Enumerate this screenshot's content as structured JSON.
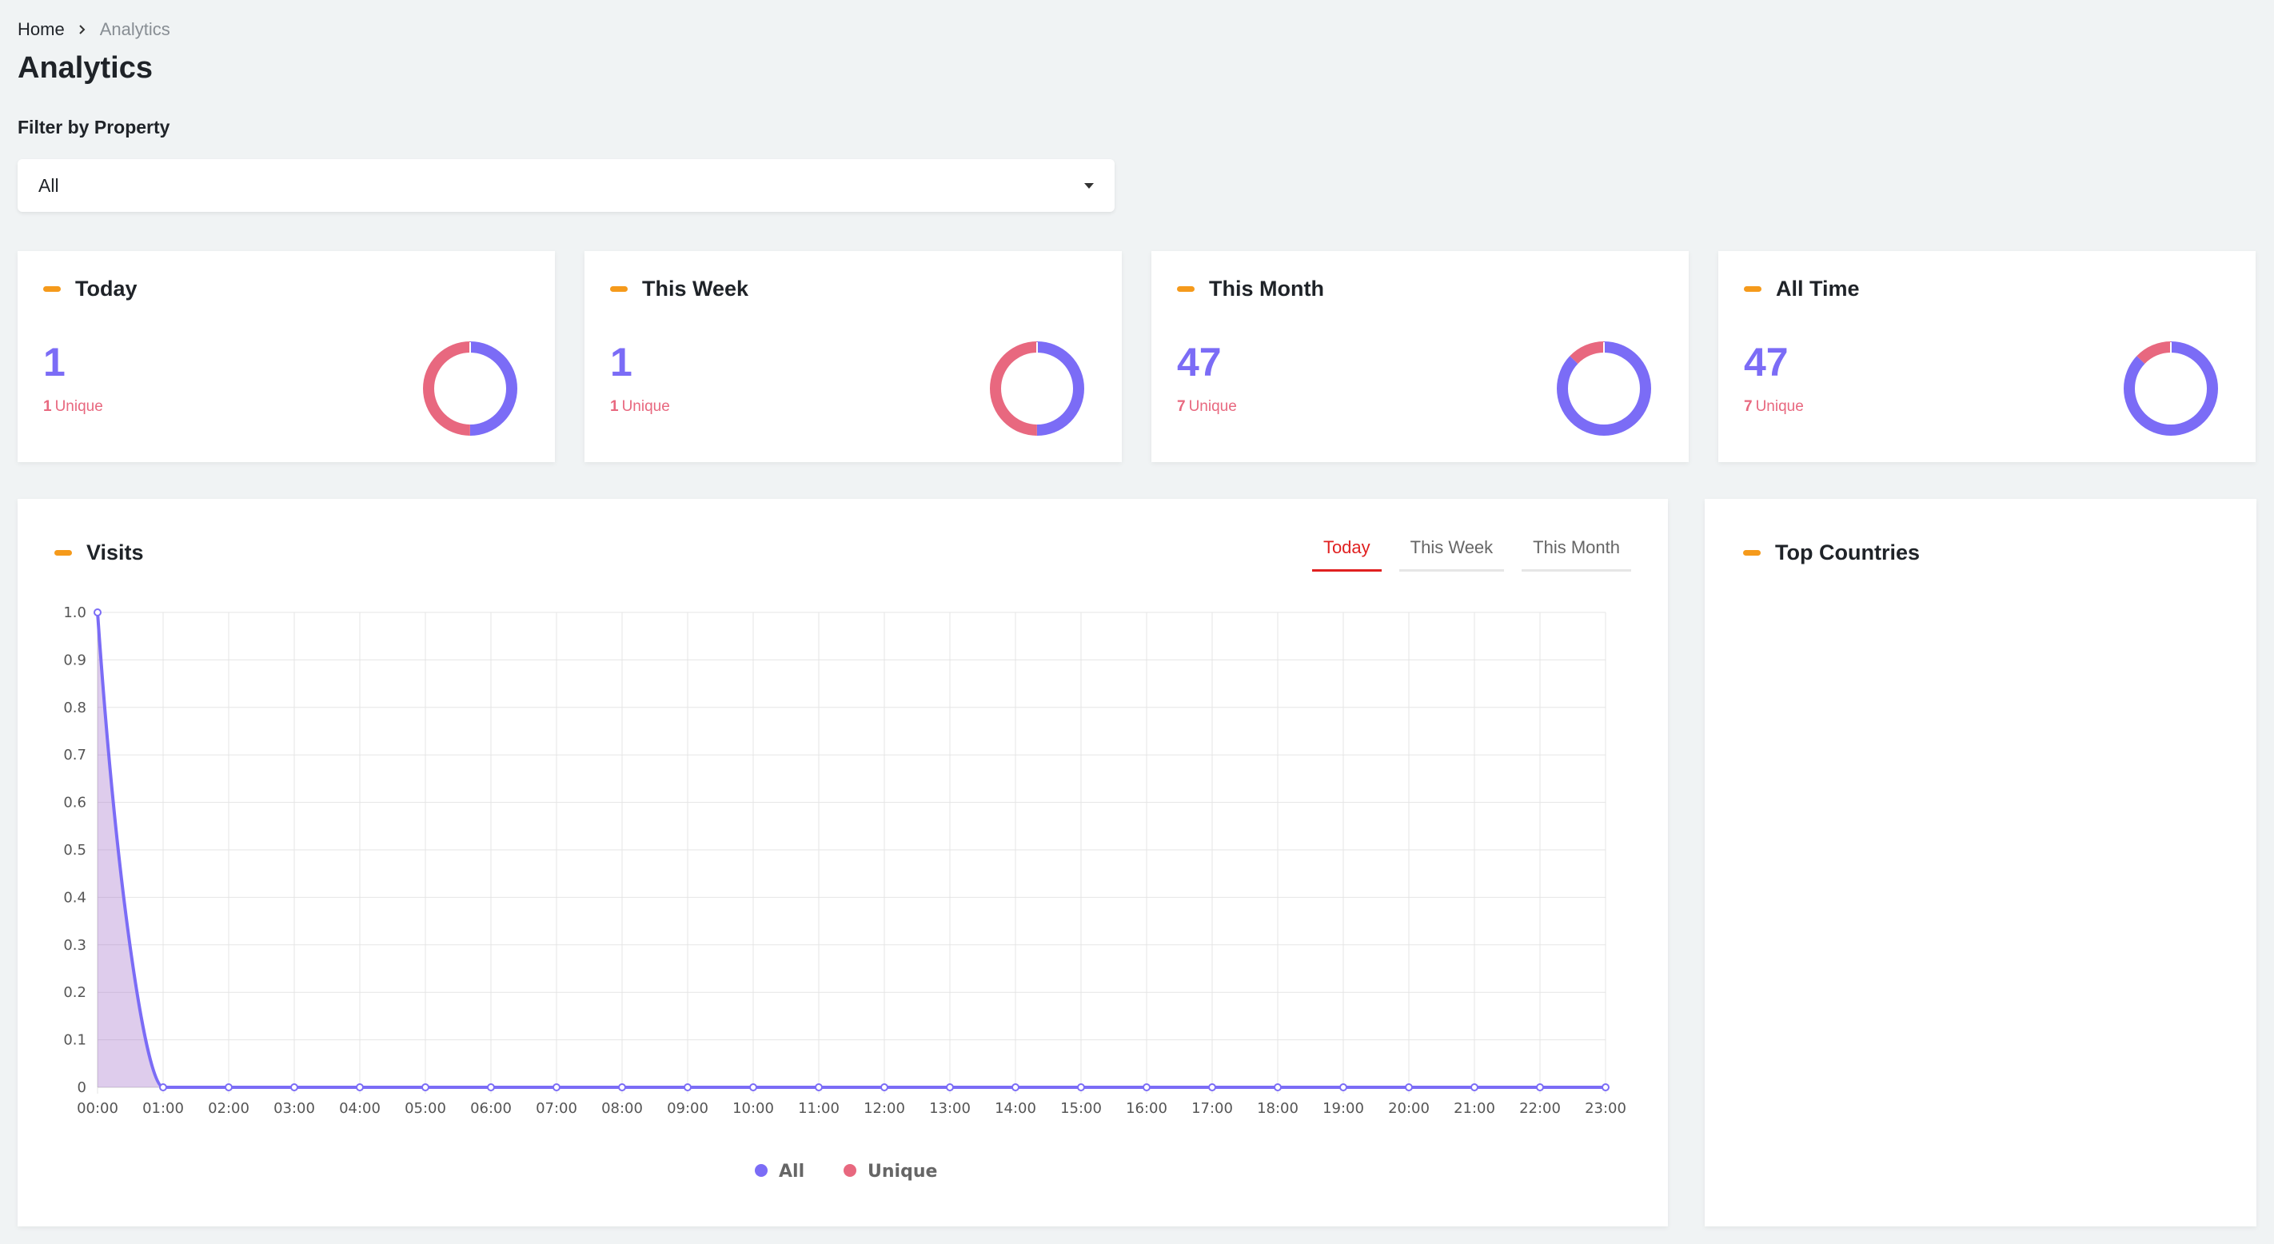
{
  "breadcrumb": {
    "home": "Home",
    "current": "Analytics"
  },
  "page_title": "Analytics",
  "filter": {
    "label": "Filter by Property",
    "selected": "All"
  },
  "stats": [
    {
      "title": "Today",
      "value": "1",
      "unique": "1",
      "unique_label": "Unique",
      "all": 1,
      "unique_count": 1
    },
    {
      "title": "This Week",
      "value": "1",
      "unique": "1",
      "unique_label": "Unique",
      "all": 1,
      "unique_count": 1
    },
    {
      "title": "This Month",
      "value": "47",
      "unique": "7",
      "unique_label": "Unique",
      "all": 47,
      "unique_count": 7
    },
    {
      "title": "All Time",
      "value": "47",
      "unique": "7",
      "unique_label": "Unique",
      "all": 47,
      "unique_count": 7
    }
  ],
  "visits": {
    "title": "Visits",
    "tabs": [
      "Today",
      "This Week",
      "This Month"
    ],
    "active_tab": "Today"
  },
  "top_countries": {
    "title": "Top Countries"
  },
  "colors": {
    "accent": "#f59a1b",
    "all": "#7b6cf6",
    "unique": "#e8687f",
    "tab_active": "#e02020"
  },
  "chart_data": {
    "type": "area",
    "x": [
      "00:00",
      "01:00",
      "02:00",
      "03:00",
      "04:00",
      "05:00",
      "06:00",
      "07:00",
      "08:00",
      "09:00",
      "10:00",
      "11:00",
      "12:00",
      "13:00",
      "14:00",
      "15:00",
      "16:00",
      "17:00",
      "18:00",
      "19:00",
      "20:00",
      "21:00",
      "22:00",
      "23:00"
    ],
    "series": [
      {
        "name": "All",
        "values": [
          1,
          0,
          0,
          0,
          0,
          0,
          0,
          0,
          0,
          0,
          0,
          0,
          0,
          0,
          0,
          0,
          0,
          0,
          0,
          0,
          0,
          0,
          0,
          0
        ]
      },
      {
        "name": "Unique",
        "values": [
          1,
          0,
          0,
          0,
          0,
          0,
          0,
          0,
          0,
          0,
          0,
          0,
          0,
          0,
          0,
          0,
          0,
          0,
          0,
          0,
          0,
          0,
          0,
          0
        ]
      }
    ],
    "yticks": [
      "0",
      "0.1",
      "0.2",
      "0.3",
      "0.4",
      "0.5",
      "0.6",
      "0.7",
      "0.8",
      "0.9",
      "1.0"
    ],
    "ylim": [
      0,
      1
    ],
    "grid": true,
    "legend": "bottom"
  }
}
